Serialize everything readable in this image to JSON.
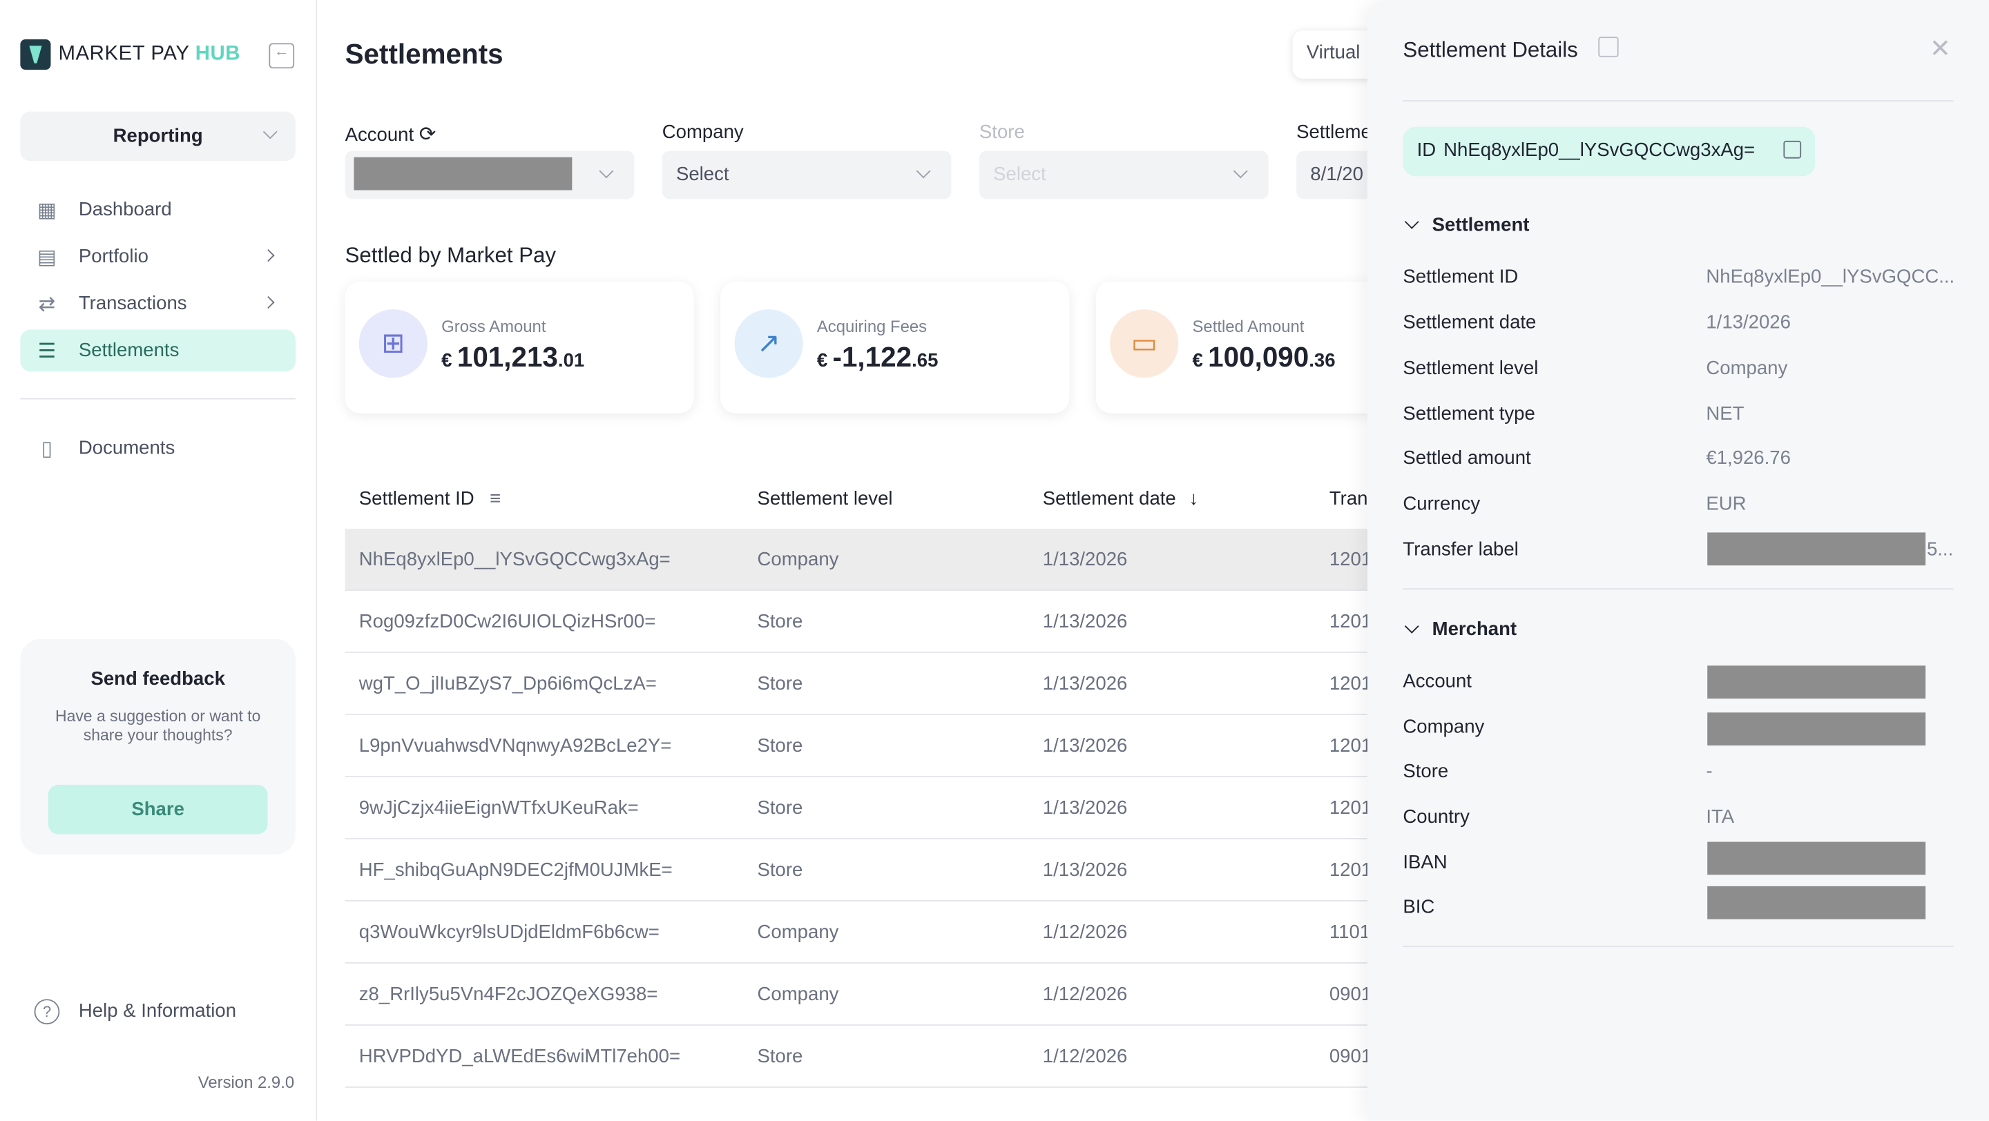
{
  "brand": {
    "name": "MARKET PAY ",
    "hub": "HUB"
  },
  "sidebar": {
    "section": "Reporting",
    "items": [
      {
        "label": "Dashboard"
      },
      {
        "label": "Portfolio"
      },
      {
        "label": "Transactions"
      },
      {
        "label": "Settlements"
      },
      {
        "label": "Documents"
      }
    ],
    "feedback": {
      "title": "Send feedback",
      "text": "Have a suggestion or want to share your thoughts?",
      "button": "Share"
    },
    "help": "Help & Information",
    "version": "Version 2.9.0"
  },
  "main": {
    "title": "Settlements",
    "virtual_label": "Virtual",
    "filters": {
      "account_label": "Account",
      "company_label": "Company",
      "company_value": "Select",
      "store_label": "Store",
      "store_value": "Select",
      "settlement_label": "Settleme",
      "settlement_value": "8/1/20"
    },
    "section_title": "Settled by Market Pay",
    "kpis": [
      {
        "label": "Gross Amount",
        "currency": "€",
        "integer": "101,213",
        "decimals": ".01",
        "color": "#e6e8fb",
        "icon": "bookmark-plus-icon"
      },
      {
        "label": "Acquiring Fees",
        "currency": "€",
        "integer": "-1,122",
        "decimals": ".65",
        "color": "#e3effb",
        "icon": "trend-icon"
      },
      {
        "label": "Settled Amount",
        "currency": "€",
        "integer": "100,090",
        "decimals": ".36",
        "color": "#fbeadc",
        "icon": "bookmark-icon"
      }
    ],
    "table": {
      "headers": [
        "Settlement ID",
        "Settlement level",
        "Settlement date",
        "Tran"
      ],
      "rows": [
        {
          "id": "NhEq8yxlEp0__lYSvGQCCwg3xAg=",
          "level": "Company",
          "date": "1/13/2026",
          "tran": "1201"
        },
        {
          "id": "Rog09zfzD0Cw2I6UIOLQizHSr00=",
          "level": "Store",
          "date": "1/13/2026",
          "tran": "1201"
        },
        {
          "id": "wgT_O_jlIuBZyS7_Dp6i6mQcLzA=",
          "level": "Store",
          "date": "1/13/2026",
          "tran": "1201"
        },
        {
          "id": "L9pnVvuahwsdVNqnwyA92BcLe2Y=",
          "level": "Store",
          "date": "1/13/2026",
          "tran": "1201"
        },
        {
          "id": "9wJjCzjx4iieEignWTfxUKeuRak=",
          "level": "Store",
          "date": "1/13/2026",
          "tran": "1201"
        },
        {
          "id": "HF_shibqGuApN9DEC2jfM0UJMkE=",
          "level": "Store",
          "date": "1/13/2026",
          "tran": "1201"
        },
        {
          "id": "q3WouWkcyr9lsUDjdEldmF6b6cw=",
          "level": "Company",
          "date": "1/12/2026",
          "tran": "1101"
        },
        {
          "id": "z8_RrIly5u5Vn4F2cJOZQeXG938=",
          "level": "Company",
          "date": "1/12/2026",
          "tran": "0901"
        },
        {
          "id": "HRVPDdYD_aLWEdEs6wiMTl7eh00=",
          "level": "Store",
          "date": "1/12/2026",
          "tran": "0901"
        }
      ]
    }
  },
  "panel": {
    "title": "Settlement Details",
    "id_label": "ID",
    "id_value": "NhEq8yxlEp0__lYSvGQCCwg3xAg=",
    "settlement_section": "Settlement",
    "settlement": [
      {
        "key": "Settlement ID",
        "value": "NhEq8yxlEp0__lYSvGQCC..."
      },
      {
        "key": "Settlement date",
        "value": "1/13/2026"
      },
      {
        "key": "Settlement level",
        "value": "Company"
      },
      {
        "key": "Settlement type",
        "value": "NET"
      },
      {
        "key": "Settled amount",
        "value": "€1,926.76"
      },
      {
        "key": "Currency",
        "value": "EUR"
      },
      {
        "key": "Transfer label",
        "value": "5..."
      }
    ],
    "merchant_section": "Merchant",
    "merchant": [
      {
        "key": "Account",
        "value": ""
      },
      {
        "key": "Company",
        "value": ""
      },
      {
        "key": "Store",
        "value": "-"
      },
      {
        "key": "Country",
        "value": "ITA"
      },
      {
        "key": "IBAN",
        "value": "..."
      },
      {
        "key": "BIC",
        "value": ""
      }
    ]
  }
}
